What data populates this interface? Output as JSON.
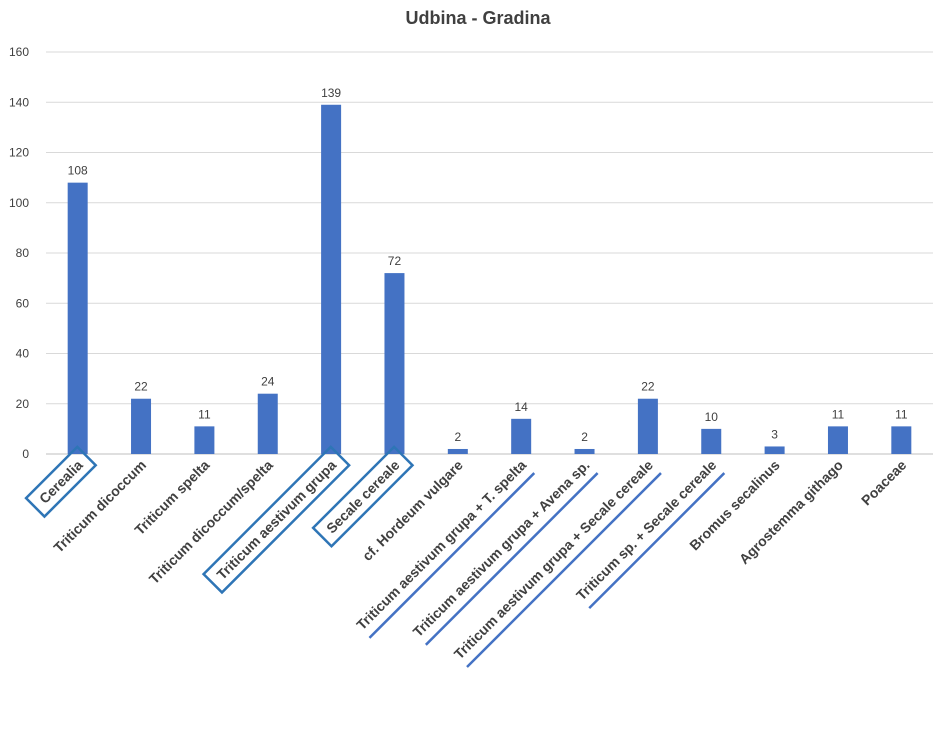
{
  "chart_data": {
    "type": "bar",
    "title": "Udbina - Gradina",
    "xlabel": "",
    "ylabel": "",
    "ylim": [
      0,
      160
    ],
    "yticks": [
      0,
      20,
      40,
      60,
      80,
      100,
      120,
      140,
      160
    ],
    "grid": true,
    "legend": "none",
    "bar_color": "#4472c4",
    "highlight_color": "#2e75b6",
    "categories": [
      "Cerealia",
      "Triticum dicoccum",
      "Triticum spelta",
      "Triticum dicoccum/spelta",
      "Triticum aestivum grupa",
      "Secale cereale",
      "cf. Hordeum vulgare",
      "Triticum aestivum grupa + T. spelta",
      "Triticum aestivum grupa + Avena sp.",
      "Triticum aestivum grupa + Secale cereale",
      "Triticum sp. + Secale cereale",
      "Bromus secalinus",
      "Agrostemma githago",
      "Poaceae"
    ],
    "values": [
      108,
      22,
      11,
      24,
      139,
      72,
      2,
      14,
      2,
      22,
      10,
      3,
      11,
      11
    ],
    "boxed_categories": [
      "Cerealia",
      "Triticum aestivum grupa",
      "Secale cereale"
    ],
    "underlined_categories": [
      "Triticum aestivum grupa + T. spelta",
      "Triticum aestivum grupa + Avena sp.",
      "Triticum aestivum grupa + Secale cereale",
      "Triticum sp. + Secale cereale"
    ]
  }
}
